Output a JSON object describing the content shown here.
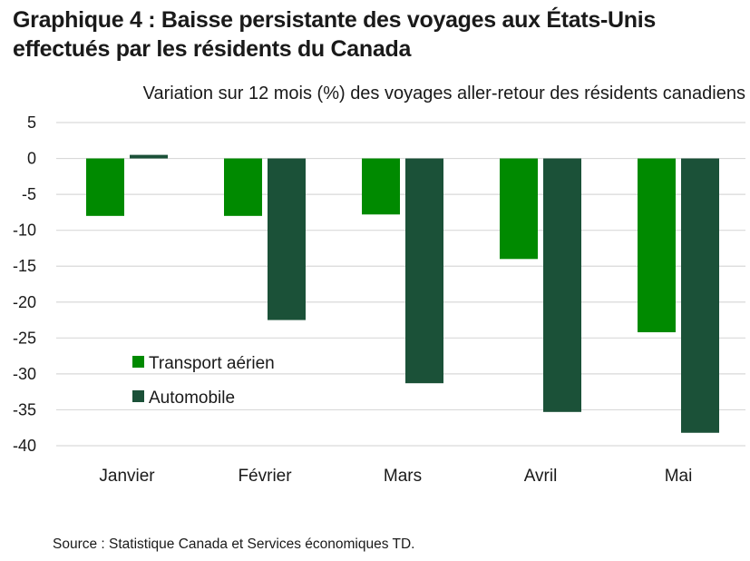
{
  "title": "Graphique 4 : Baisse persistante des voyages aux États-Unis effectués par les résidents du Canada",
  "source": "Source : Statistique Canada et Services économiques TD.",
  "chart_data": {
    "type": "bar",
    "title": "Graphique 4 : Baisse persistante des voyages aux États-Unis effectués par les résidents du Canada",
    "ylabel": "Variation sur 12 mois (%) des voyages aller-retour des résidents canadiens",
    "xlabel": "",
    "ylim": [
      -40,
      5
    ],
    "yticks": [
      5,
      0,
      -5,
      -10,
      -15,
      -20,
      -25,
      -30,
      -35,
      -40
    ],
    "grid": true,
    "legend_position": "lower-left",
    "categories": [
      "Janvier",
      "Février",
      "Mars",
      "Avril",
      "Mai"
    ],
    "series": [
      {
        "name": "Transport aérien",
        "color": "#008a00",
        "values": [
          -8.0,
          -8.0,
          -7.8,
          -14.0,
          -24.2
        ]
      },
      {
        "name": "Automobile",
        "color": "#1b5138",
        "values": [
          0.5,
          -22.5,
          -31.3,
          -35.3,
          -38.2
        ]
      }
    ]
  }
}
